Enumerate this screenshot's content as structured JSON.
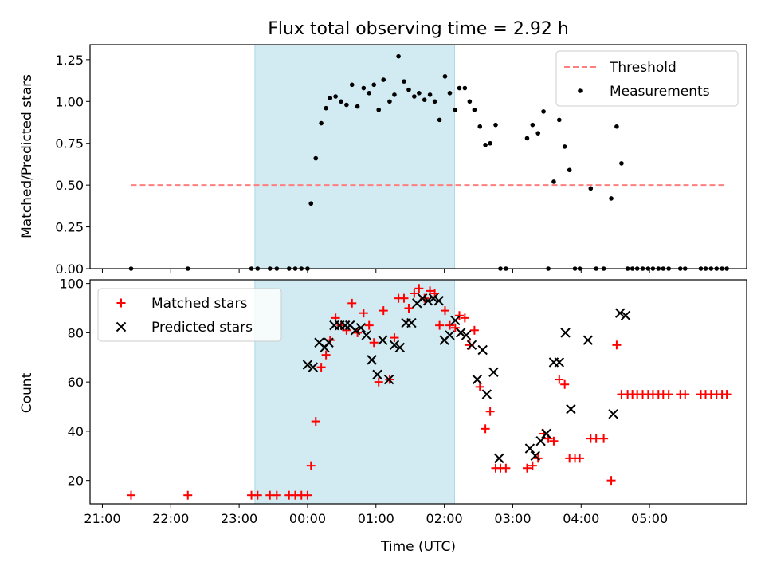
{
  "chart_data": [
    {
      "type": "scatter",
      "title": "Flux total observing time = 2.92 h",
      "xlabel": "",
      "ylabel": "Matched/Predicted stars",
      "x_axis": "time (UTC), x values in decimal hours from 00:00",
      "xlim": [
        -3.18,
        6.42
      ],
      "ylim": [
        0,
        1.34
      ],
      "yticks": [
        "0.00",
        "0.25",
        "0.50",
        "0.75",
        "1.00",
        "1.25"
      ],
      "grid": false,
      "legend_position": "top-right",
      "shaded_band": {
        "x_start": 23.23,
        "x_end": 26.15,
        "color": "#add8e6"
      },
      "threshold": {
        "name": "Threshold",
        "value": 0.5,
        "x_range": [
          -2.58,
          6.13
        ],
        "color": "#ff7f7f",
        "style": "dashed"
      },
      "series": [
        {
          "name": "Measurements",
          "color": "#000000",
          "marker": "dot",
          "points": [
            [
              -2.58,
              0
            ],
            [
              -1.75,
              0
            ],
            [
              -0.82,
              0
            ],
            [
              -0.73,
              0
            ],
            [
              -0.55,
              0
            ],
            [
              -0.45,
              0
            ],
            [
              -0.27,
              0
            ],
            [
              -0.18,
              0
            ],
            [
              -0.09,
              0
            ],
            [
              0.0,
              0
            ],
            [
              0.05,
              0.39
            ],
            [
              0.12,
              0.66
            ],
            [
              0.2,
              0.87
            ],
            [
              0.27,
              0.96
            ],
            [
              0.33,
              1.02
            ],
            [
              0.41,
              1.03
            ],
            [
              0.49,
              1.0
            ],
            [
              0.57,
              0.98
            ],
            [
              0.65,
              1.1
            ],
            [
              0.73,
              0.97
            ],
            [
              0.82,
              1.08
            ],
            [
              0.9,
              1.05
            ],
            [
              0.97,
              1.1
            ],
            [
              1.04,
              0.95
            ],
            [
              1.11,
              1.13
            ],
            [
              1.2,
              1.0
            ],
            [
              1.27,
              1.04
            ],
            [
              1.33,
              1.27
            ],
            [
              1.41,
              1.12
            ],
            [
              1.48,
              1.07
            ],
            [
              1.56,
              1.03
            ],
            [
              1.63,
              1.05
            ],
            [
              1.71,
              1.01
            ],
            [
              1.79,
              1.04
            ],
            [
              1.86,
              1.0
            ],
            [
              1.93,
              0.89
            ],
            [
              2.01,
              1.15
            ],
            [
              2.08,
              1.05
            ],
            [
              2.16,
              0.95
            ],
            [
              2.22,
              1.08
            ],
            [
              2.3,
              1.08
            ],
            [
              2.37,
              1.0
            ],
            [
              2.44,
              0.95
            ],
            [
              2.52,
              0.85
            ],
            [
              2.6,
              0.74
            ],
            [
              2.67,
              0.75
            ],
            [
              2.75,
              0.86
            ],
            [
              2.82,
              0
            ],
            [
              2.9,
              0
            ],
            [
              3.21,
              0.78
            ],
            [
              3.29,
              0.86
            ],
            [
              3.37,
              0.81
            ],
            [
              3.45,
              0.94
            ],
            [
              3.52,
              0
            ],
            [
              3.6,
              0.52
            ],
            [
              3.68,
              0.89
            ],
            [
              3.76,
              0.73
            ],
            [
              3.83,
              0.59
            ],
            [
              3.91,
              0
            ],
            [
              3.98,
              0
            ],
            [
              4.14,
              0.48
            ],
            [
              4.22,
              0
            ],
            [
              4.33,
              0
            ],
            [
              4.44,
              0.42
            ],
            [
              4.52,
              0.85
            ],
            [
              4.59,
              0.63
            ],
            [
              4.68,
              0
            ],
            [
              4.75,
              0
            ],
            [
              4.82,
              0
            ],
            [
              4.9,
              0
            ],
            [
              4.98,
              0
            ],
            [
              5.05,
              0
            ],
            [
              5.13,
              0
            ],
            [
              5.2,
              0
            ],
            [
              5.28,
              0
            ],
            [
              5.45,
              0
            ],
            [
              5.52,
              0
            ],
            [
              5.75,
              0
            ],
            [
              5.82,
              0
            ],
            [
              5.9,
              0
            ],
            [
              5.98,
              0
            ],
            [
              6.06,
              0
            ],
            [
              6.13,
              0
            ]
          ]
        }
      ]
    },
    {
      "type": "scatter",
      "title": "",
      "xlabel": "Time (UTC)",
      "ylabel": "Count",
      "x_axis": "time (UTC), x values in decimal hours from 00:00",
      "xlim": [
        -3.18,
        6.42
      ],
      "ylim": [
        10.5,
        101.5
      ],
      "xticks": [
        "21:00",
        "22:00",
        "23:00",
        "00:00",
        "01:00",
        "02:00",
        "03:00",
        "04:00",
        "05:00"
      ],
      "yticks": [
        "20",
        "40",
        "60",
        "80",
        "100"
      ],
      "grid": false,
      "legend_position": "top-left",
      "shaded_band": {
        "x_start": 23.23,
        "x_end": 26.15,
        "color": "#add8e6"
      },
      "series": [
        {
          "name": "Matched stars",
          "color": "#ff0000",
          "marker": "plus",
          "points": [
            [
              -2.58,
              14
            ],
            [
              -1.75,
              14
            ],
            [
              -0.82,
              14
            ],
            [
              -0.73,
              14
            ],
            [
              -0.55,
              14
            ],
            [
              -0.45,
              14
            ],
            [
              -0.27,
              14
            ],
            [
              -0.18,
              14
            ],
            [
              -0.09,
              14
            ],
            [
              0.0,
              14
            ],
            [
              0.05,
              26
            ],
            [
              0.12,
              44
            ],
            [
              0.2,
              66
            ],
            [
              0.27,
              71
            ],
            [
              0.33,
              77
            ],
            [
              0.41,
              86
            ],
            [
              0.49,
              83
            ],
            [
              0.57,
              81
            ],
            [
              0.65,
              92
            ],
            [
              0.73,
              80
            ],
            [
              0.82,
              88
            ],
            [
              0.9,
              83
            ],
            [
              0.97,
              76
            ],
            [
              1.04,
              60
            ],
            [
              1.11,
              89
            ],
            [
              1.2,
              61
            ],
            [
              1.27,
              78
            ],
            [
              1.33,
              94
            ],
            [
              1.41,
              94
            ],
            [
              1.48,
              90
            ],
            [
              1.56,
              96
            ],
            [
              1.63,
              98
            ],
            [
              1.71,
              94
            ],
            [
              1.79,
              97
            ],
            [
              1.86,
              96
            ],
            [
              1.93,
              83
            ],
            [
              2.01,
              89
            ],
            [
              2.08,
              83
            ],
            [
              2.16,
              82
            ],
            [
              2.22,
              87
            ],
            [
              2.3,
              86
            ],
            [
              2.37,
              75
            ],
            [
              2.44,
              81
            ],
            [
              2.52,
              58
            ],
            [
              2.6,
              41
            ],
            [
              2.67,
              48
            ],
            [
              2.75,
              25
            ],
            [
              2.82,
              25
            ],
            [
              2.9,
              25
            ],
            [
              3.21,
              25
            ],
            [
              3.29,
              26
            ],
            [
              3.37,
              29
            ],
            [
              3.45,
              39
            ],
            [
              3.52,
              37
            ],
            [
              3.6,
              36
            ],
            [
              3.68,
              61
            ],
            [
              3.76,
              59
            ],
            [
              3.83,
              29
            ],
            [
              3.91,
              29
            ],
            [
              3.98,
              29
            ],
            [
              4.14,
              37
            ],
            [
              4.22,
              37
            ],
            [
              4.33,
              37
            ],
            [
              4.44,
              20
            ],
            [
              4.52,
              75
            ],
            [
              4.59,
              55
            ],
            [
              4.68,
              55
            ],
            [
              4.75,
              55
            ],
            [
              4.82,
              55
            ],
            [
              4.9,
              55
            ],
            [
              4.98,
              55
            ],
            [
              5.05,
              55
            ],
            [
              5.13,
              55
            ],
            [
              5.2,
              55
            ],
            [
              5.28,
              55
            ],
            [
              5.45,
              55
            ],
            [
              5.52,
              55
            ],
            [
              5.75,
              55
            ],
            [
              5.82,
              55
            ],
            [
              5.9,
              55
            ],
            [
              5.98,
              55
            ],
            [
              6.06,
              55
            ],
            [
              6.13,
              55
            ]
          ]
        },
        {
          "name": "Predicted stars",
          "color": "#000000",
          "marker": "x",
          "points": [
            [
              0.0,
              67
            ],
            [
              0.08,
              66
            ],
            [
              0.17,
              76
            ],
            [
              0.25,
              74
            ],
            [
              0.31,
              76
            ],
            [
              0.39,
              83
            ],
            [
              0.47,
              83
            ],
            [
              0.55,
              83
            ],
            [
              0.62,
              83
            ],
            [
              0.7,
              81
            ],
            [
              0.78,
              82
            ],
            [
              0.86,
              79
            ],
            [
              0.94,
              69
            ],
            [
              1.02,
              63
            ],
            [
              1.1,
              77
            ],
            [
              1.19,
              61
            ],
            [
              1.27,
              75
            ],
            [
              1.35,
              74
            ],
            [
              1.44,
              84
            ],
            [
              1.52,
              84
            ],
            [
              1.6,
              92
            ],
            [
              1.68,
              94
            ],
            [
              1.76,
              93
            ],
            [
              1.84,
              94
            ],
            [
              1.92,
              93
            ],
            [
              2.0,
              77
            ],
            [
              2.08,
              79
            ],
            [
              2.16,
              85
            ],
            [
              2.24,
              80
            ],
            [
              2.32,
              79
            ],
            [
              2.4,
              75
            ],
            [
              2.48,
              61
            ],
            [
              2.56,
              73
            ],
            [
              2.62,
              55
            ],
            [
              2.72,
              64
            ],
            [
              2.8,
              29
            ],
            [
              3.25,
              33
            ],
            [
              3.33,
              30
            ],
            [
              3.41,
              36
            ],
            [
              3.49,
              39
            ],
            [
              3.6,
              68
            ],
            [
              3.68,
              68
            ],
            [
              3.77,
              80
            ],
            [
              3.85,
              49
            ],
            [
              4.1,
              77
            ],
            [
              4.47,
              47
            ],
            [
              4.57,
              88
            ],
            [
              4.65,
              87
            ]
          ]
        }
      ]
    }
  ]
}
